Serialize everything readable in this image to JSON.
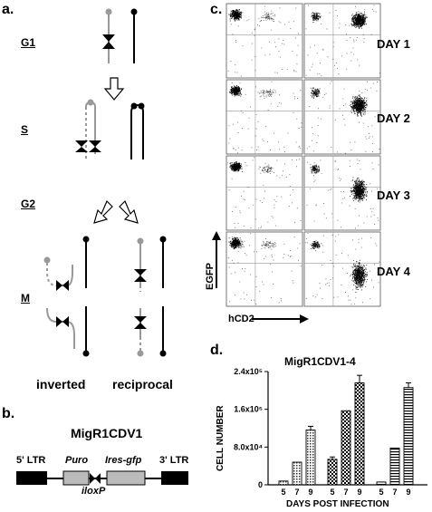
{
  "panels": {
    "a": "a.",
    "b": "b.",
    "c": "c.",
    "d": "d."
  },
  "phases": {
    "g1": "G1",
    "s": "S",
    "g2": "G2",
    "m": "M"
  },
  "outcomes": {
    "inverted": "inverted",
    "reciprocal": "reciprocal"
  },
  "construct": {
    "title": "MigR1CDV1",
    "ltr5": "5' LTR",
    "ltr3": "3' LTR",
    "puro": "Puro",
    "ires": "Ires-gfp",
    "iloxp": "iloxP"
  },
  "flow": {
    "days": [
      "DAY 1",
      "DAY 2",
      "DAY 3",
      "DAY 4"
    ],
    "ylabel": "EGFP",
    "xlabel": "hCD2"
  },
  "chart_data": {
    "type": "bar",
    "title": "MigR1CDV1-4",
    "xlabel": "DAYS POST INFECTION",
    "ylabel": "CELL NUMBER",
    "ylim": [
      0,
      240000
    ],
    "yticks": [
      "0",
      "8.0x10⁴",
      "1.6x10⁵",
      "2.4x10⁵"
    ],
    "ytick_values": [
      0,
      80000,
      160000,
      240000
    ],
    "groups": [
      {
        "pattern": "dots",
        "days": [
          "5",
          "7",
          "9"
        ],
        "values": [
          8000,
          48000,
          116000
        ],
        "errors": [
          0,
          0,
          8000
        ]
      },
      {
        "pattern": "checker",
        "days": [
          "5",
          "7",
          "9"
        ],
        "values": [
          54000,
          157000,
          216000
        ],
        "errors": [
          5000,
          0,
          16000
        ]
      },
      {
        "pattern": "stripes",
        "days": [
          "5",
          "7",
          "9"
        ],
        "values": [
          6000,
          78000,
          206000
        ],
        "errors": [
          0,
          0,
          10000
        ]
      }
    ]
  }
}
